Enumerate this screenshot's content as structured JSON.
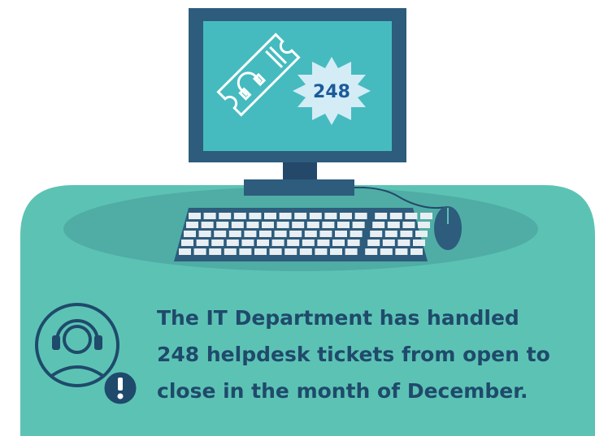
{
  "badge": "248",
  "message": {
    "lines": [
      "The IT Department has handled",
      "248 helpdesk tickets from open to",
      "close in the month of December."
    ]
  }
}
